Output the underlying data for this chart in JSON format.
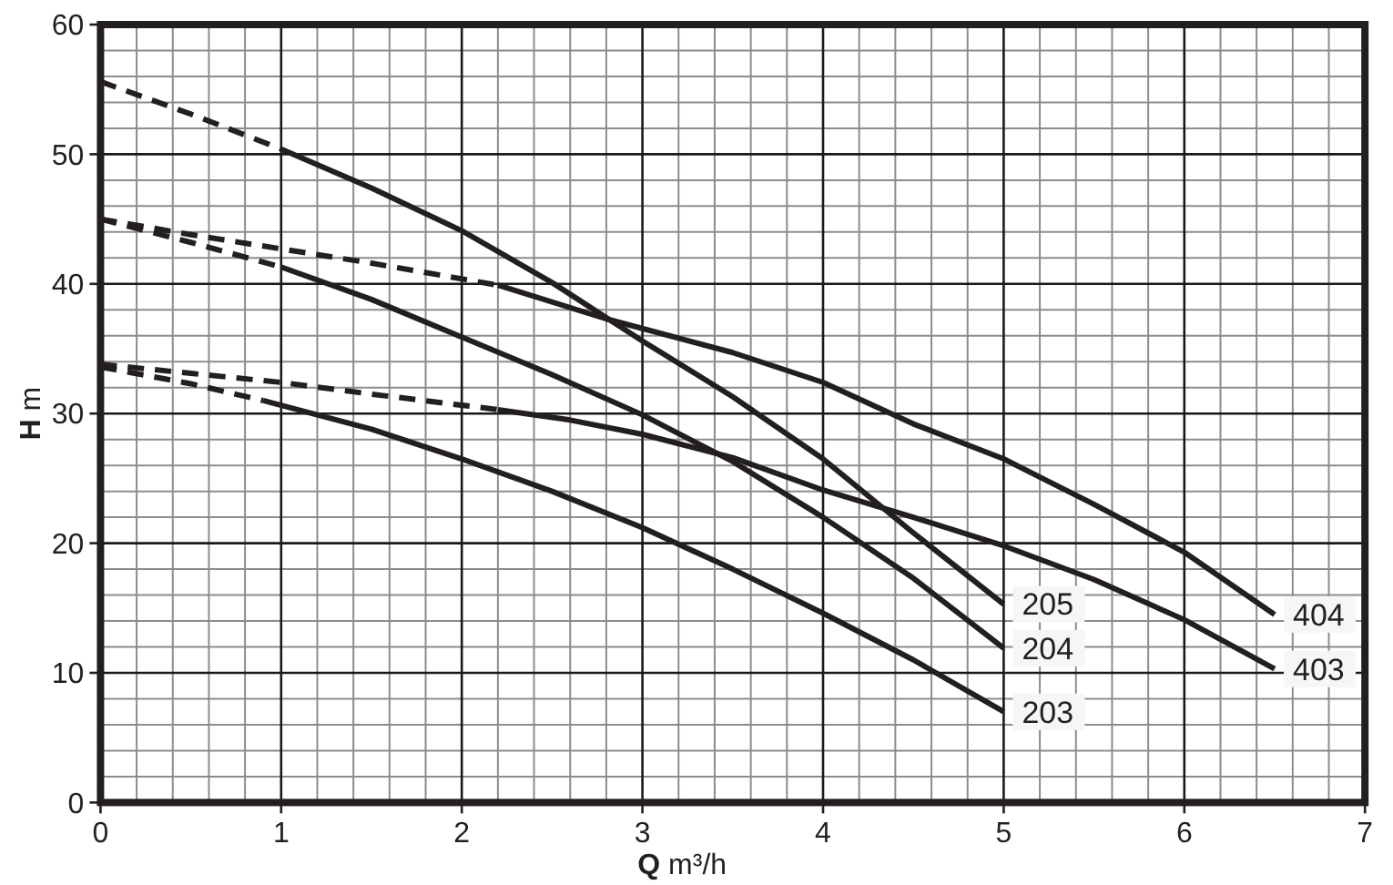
{
  "chart_data": {
    "type": "line",
    "xlabel": "Q m³/h",
    "ylabel": "H m",
    "xlim": [
      0,
      7
    ],
    "ylim": [
      0,
      60
    ],
    "xticks": [
      0,
      1,
      2,
      3,
      4,
      5,
      6,
      7
    ],
    "yticks": [
      0,
      10,
      20,
      30,
      40,
      50,
      60
    ],
    "grid": true,
    "series": [
      {
        "color": "#231f20",
        "line_style": "dashed",
        "x": [
          0,
          0.5,
          1
        ],
        "values": [
          55.6,
          53.1,
          50.4
        ]
      },
      {
        "name": "205",
        "color": "#231f20",
        "line_style": "solid",
        "x": [
          1,
          1.5,
          2,
          2.5,
          3,
          3.5,
          4,
          4.5,
          5
        ],
        "values": [
          50.4,
          47.4,
          44.1,
          40.1,
          35.6,
          31.3,
          26.5,
          20.8,
          15.3
        ]
      },
      {
        "color": "#231f20",
        "line_style": "dashed",
        "x": [
          0,
          0.5,
          1
        ],
        "values": [
          45.0,
          43.2,
          41.3
        ]
      },
      {
        "name": "204",
        "color": "#231f20",
        "line_style": "solid",
        "x": [
          1,
          1.5,
          2,
          2.5,
          3,
          3.5,
          4,
          4.5,
          5
        ],
        "values": [
          41.3,
          38.8,
          35.9,
          33.0,
          29.9,
          26.3,
          22.0,
          17.3,
          11.9
        ]
      },
      {
        "color": "#231f20",
        "line_style": "dashed",
        "x": [
          0,
          0.5,
          0.9
        ],
        "values": [
          33.6,
          32.3,
          31.0
        ]
      },
      {
        "name": "203",
        "color": "#231f20",
        "line_style": "solid",
        "x": [
          0.9,
          1.5,
          2,
          2.5,
          3,
          3.5,
          4,
          4.5,
          5
        ],
        "values": [
          31.0,
          28.8,
          26.5,
          24.0,
          21.2,
          18.0,
          14.6,
          11.0,
          7.0
        ]
      },
      {
        "color": "#231f20",
        "line_style": "dashed",
        "x": [
          0,
          0.5,
          1,
          1.5,
          2.2
        ],
        "values": [
          45.0,
          43.8,
          42.7,
          41.6,
          39.9
        ]
      },
      {
        "name": "404",
        "color": "#231f20",
        "line_style": "solid",
        "x": [
          2.2,
          2.8,
          3.5,
          4,
          4.5,
          5,
          5.5,
          6,
          6.5
        ],
        "values": [
          39.9,
          37.3,
          34.7,
          32.4,
          29.2,
          26.5,
          23.0,
          19.3,
          14.5
        ]
      },
      {
        "color": "#231f20",
        "line_style": "dashed",
        "x": [
          0,
          0.5,
          1,
          1.5,
          2.2
        ],
        "values": [
          33.8,
          33.1,
          32.4,
          31.5,
          30.3
        ]
      },
      {
        "name": "403",
        "color": "#231f20",
        "line_style": "solid",
        "x": [
          2.2,
          2.6,
          3,
          3.5,
          4,
          4.5,
          5,
          5.5,
          6,
          6.5
        ],
        "values": [
          30.3,
          29.5,
          28.4,
          26.6,
          24.1,
          22.0,
          19.8,
          17.2,
          14.1,
          10.3
        ]
      }
    ]
  }
}
